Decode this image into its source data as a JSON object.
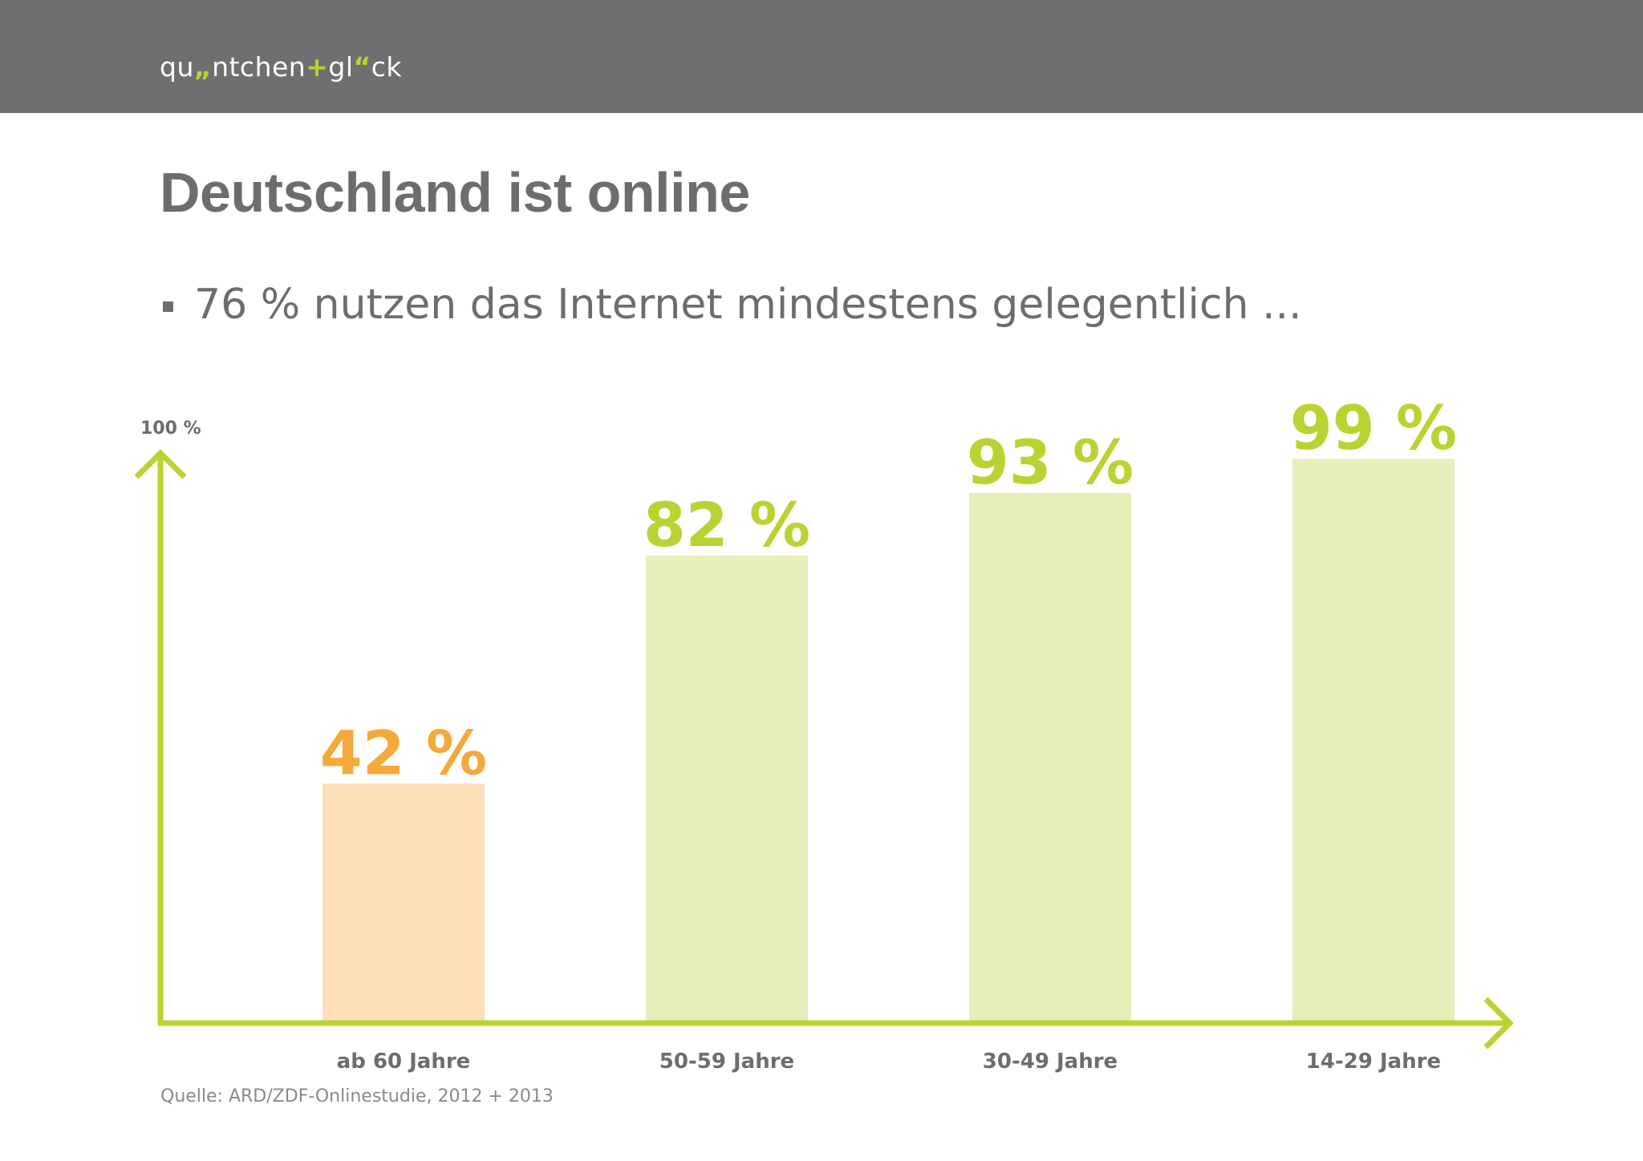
{
  "header": {
    "logo_parts": [
      "qu",
      "„",
      "ntchen",
      "+",
      "gl",
      "“",
      "ck"
    ],
    "logo_accent_color": "#b7d433",
    "background_color": "#706f6f"
  },
  "slide": {
    "title": "Deutschland ist online",
    "bullet": "76 % nutzen das Internet mindestens gelegentlich ...",
    "source": "Quelle: ARD/ZDF-Onlinestudie, 2012 + 2013"
  },
  "chart_data": {
    "type": "bar",
    "title": "",
    "xlabel": "",
    "ylabel": "",
    "ylim": [
      0,
      100
    ],
    "y_axis_label": "100 %",
    "grid": false,
    "categories": [
      "ab 60 Jahre",
      "50-59 Jahre",
      "30-49 Jahre",
      "14-29 Jahre"
    ],
    "values": [
      42,
      82,
      93,
      99
    ],
    "value_labels": [
      "42 %",
      "82 %",
      "93 %",
      "99 %"
    ],
    "bar_colors": [
      "#fddfb9",
      "#e4efba",
      "#e4efba",
      "#e4efba"
    ],
    "label_colors": [
      "#f5a93b",
      "#b7d433",
      "#b7d433",
      "#b7d433"
    ],
    "axis_color": "#b7d433"
  }
}
